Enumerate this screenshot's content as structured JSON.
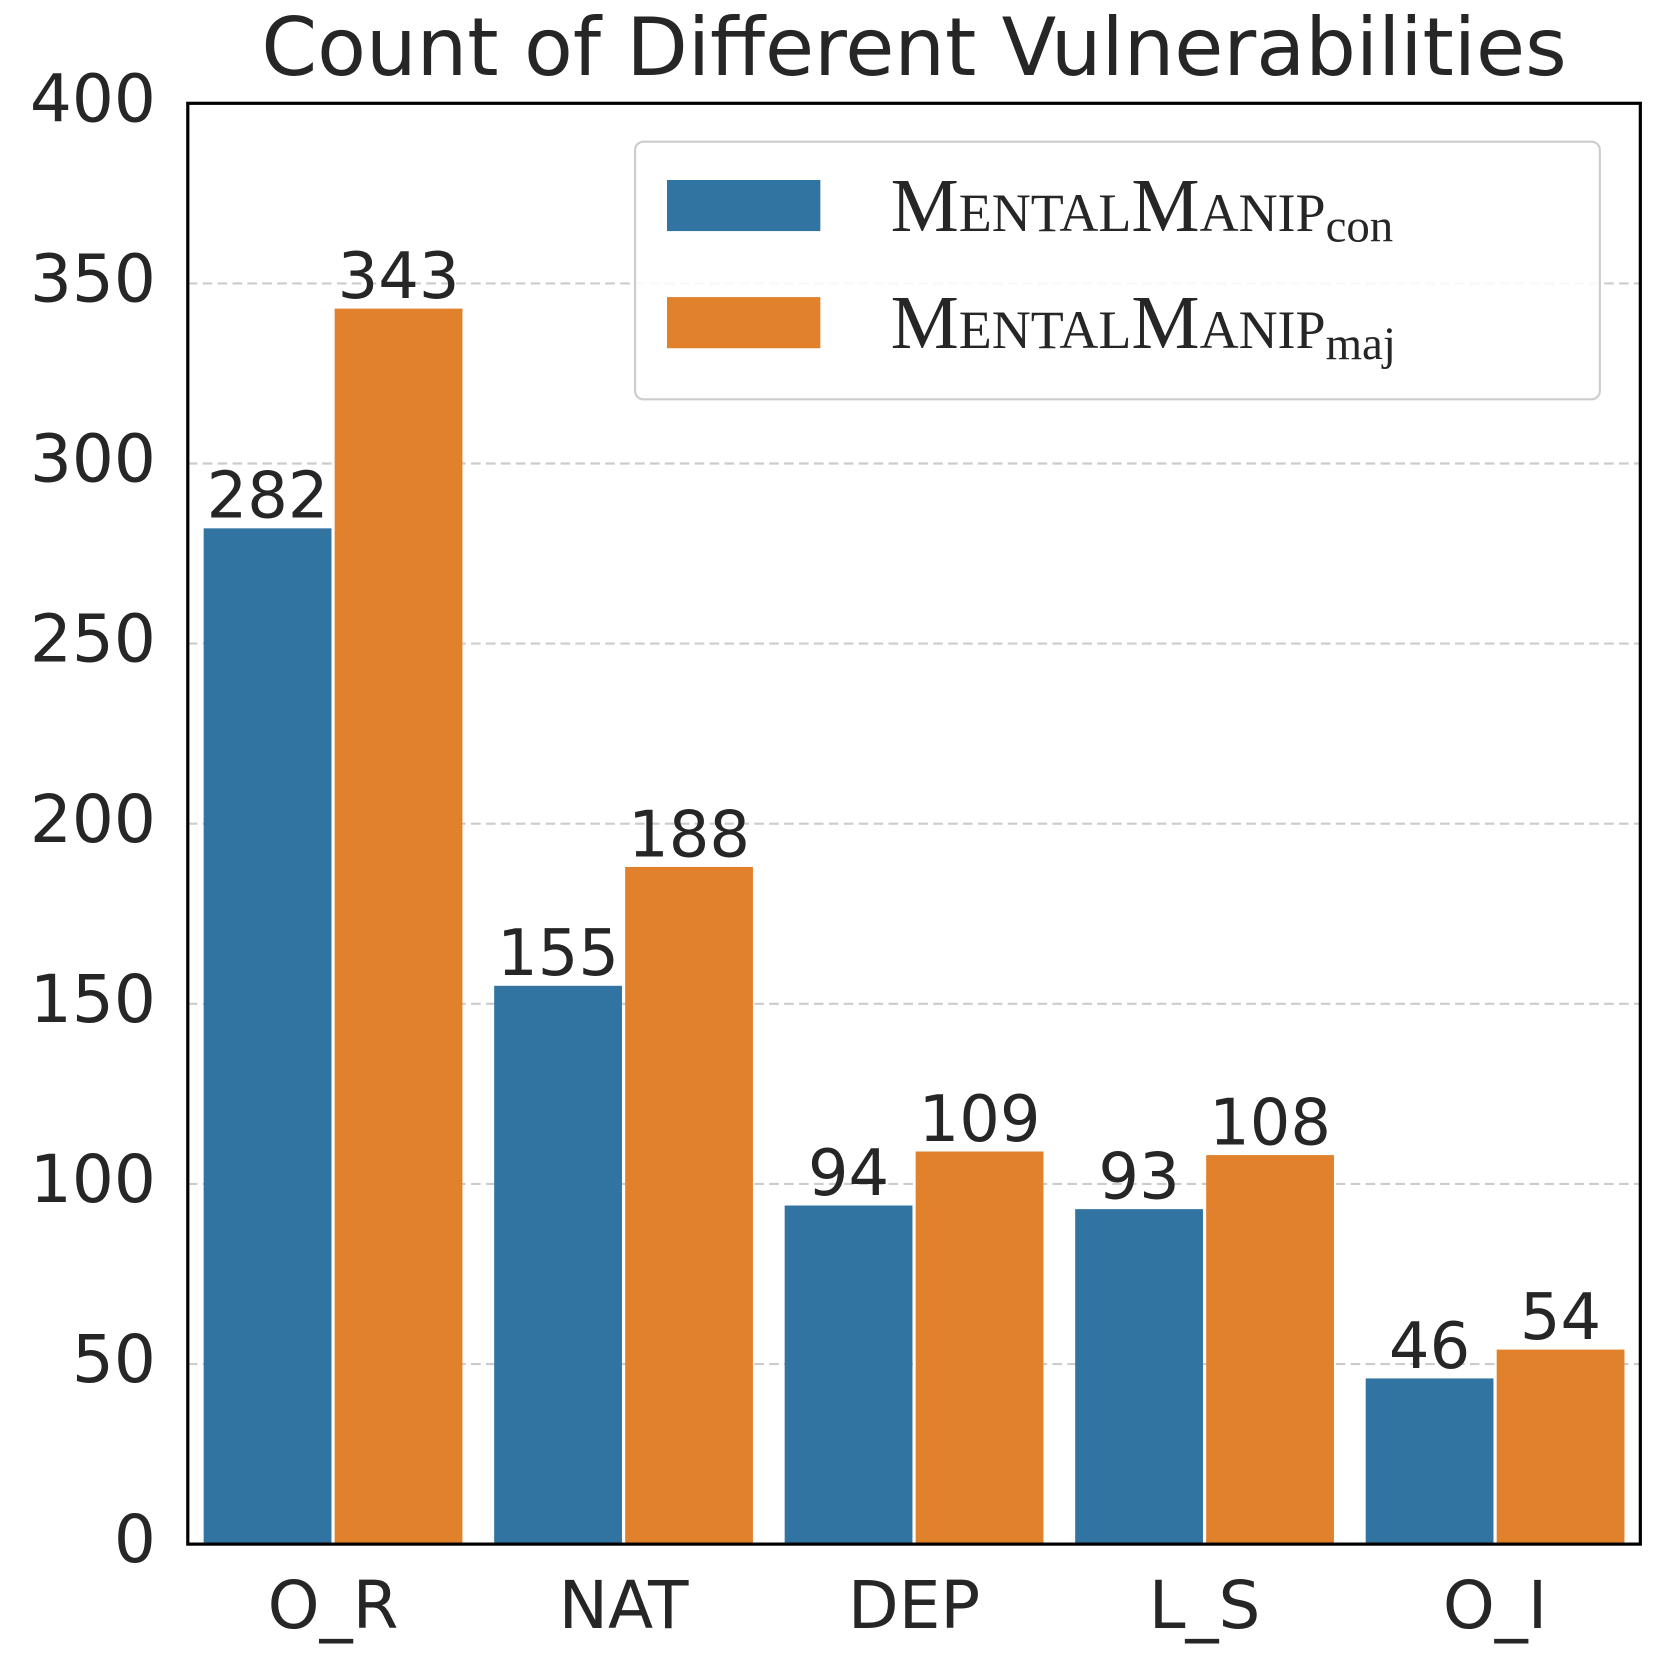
{
  "chart_data": {
    "type": "bar",
    "title": "Count of Different Vulnerabilities",
    "categories": [
      "O_R",
      "NAT",
      "DEP",
      "L_S",
      "O_I"
    ],
    "series": [
      {
        "name": "MentalManip",
        "name_subscript": "con",
        "color": "#3274a1",
        "values": [
          282,
          155,
          94,
          93,
          46
        ]
      },
      {
        "name": "MentalManip",
        "name_subscript": "maj",
        "color": "#e1812c",
        "values": [
          343,
          188,
          109,
          108,
          54
        ]
      }
    ],
    "ylim": [
      0,
      400
    ],
    "yticks": [
      0,
      50,
      100,
      150,
      200,
      250,
      300,
      350,
      400
    ],
    "grid": true,
    "legend": "upper right"
  }
}
